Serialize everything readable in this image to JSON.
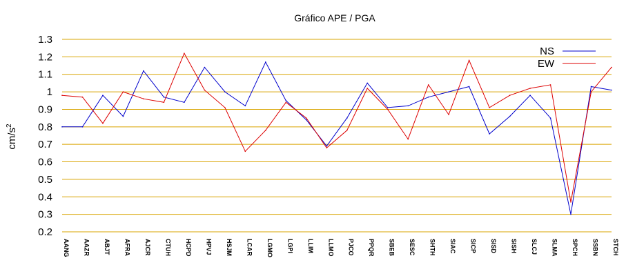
{
  "chart_data": {
    "type": "line",
    "title": "Gráfico  APE / PGA",
    "xlabel": "",
    "ylabel": "cm/s",
    "ylabel_superscript": "2",
    "ylim": [
      0.2,
      1.3
    ],
    "yticks": [
      "1.3",
      "1.2",
      "1.1",
      "1",
      "0.9",
      "0.8",
      "0.7",
      "0.6",
      "0.5",
      "0.4",
      "0.3",
      "0.2"
    ],
    "grid": "horizontal",
    "legend_position": "top-right",
    "categories": [
      "AANG",
      "AAZR",
      "ABJT",
      "AFRA",
      "AJCR",
      "CTUH",
      "HCPD",
      "HPVJ",
      "HSJM",
      "LCAR",
      "LGMO",
      "LGPI",
      "LLIM",
      "LLMO",
      "PJCO",
      "PPQR",
      "SBEB",
      "SESC",
      "SHTH",
      "SIAC",
      "SICP",
      "SISD",
      "SISH",
      "SLCJ",
      "SLMA",
      "SPCH",
      "SSBN",
      "STCH"
    ],
    "series": [
      {
        "name": "NS",
        "color": "#0000cc",
        "values": [
          0.8,
          0.8,
          0.98,
          0.86,
          1.12,
          0.97,
          0.94,
          1.14,
          1.0,
          0.92,
          1.17,
          0.95,
          0.84,
          0.69,
          0.85,
          1.05,
          0.91,
          0.92,
          0.97,
          1.0,
          1.03,
          0.76,
          0.86,
          0.98,
          0.85,
          0.3,
          1.03,
          1.01
        ]
      },
      {
        "name": "EW",
        "color": "#dd0000",
        "values": [
          0.98,
          0.97,
          0.82,
          1.0,
          0.96,
          0.94,
          1.22,
          1.01,
          0.91,
          0.66,
          0.78,
          0.94,
          0.85,
          0.68,
          0.78,
          1.02,
          0.9,
          0.73,
          1.04,
          0.87,
          1.18,
          0.91,
          0.98,
          1.02,
          1.04,
          0.37,
          1.0,
          1.14
        ]
      }
    ]
  },
  "colors": {
    "grid": "#d9a400",
    "axis": "#000000"
  }
}
